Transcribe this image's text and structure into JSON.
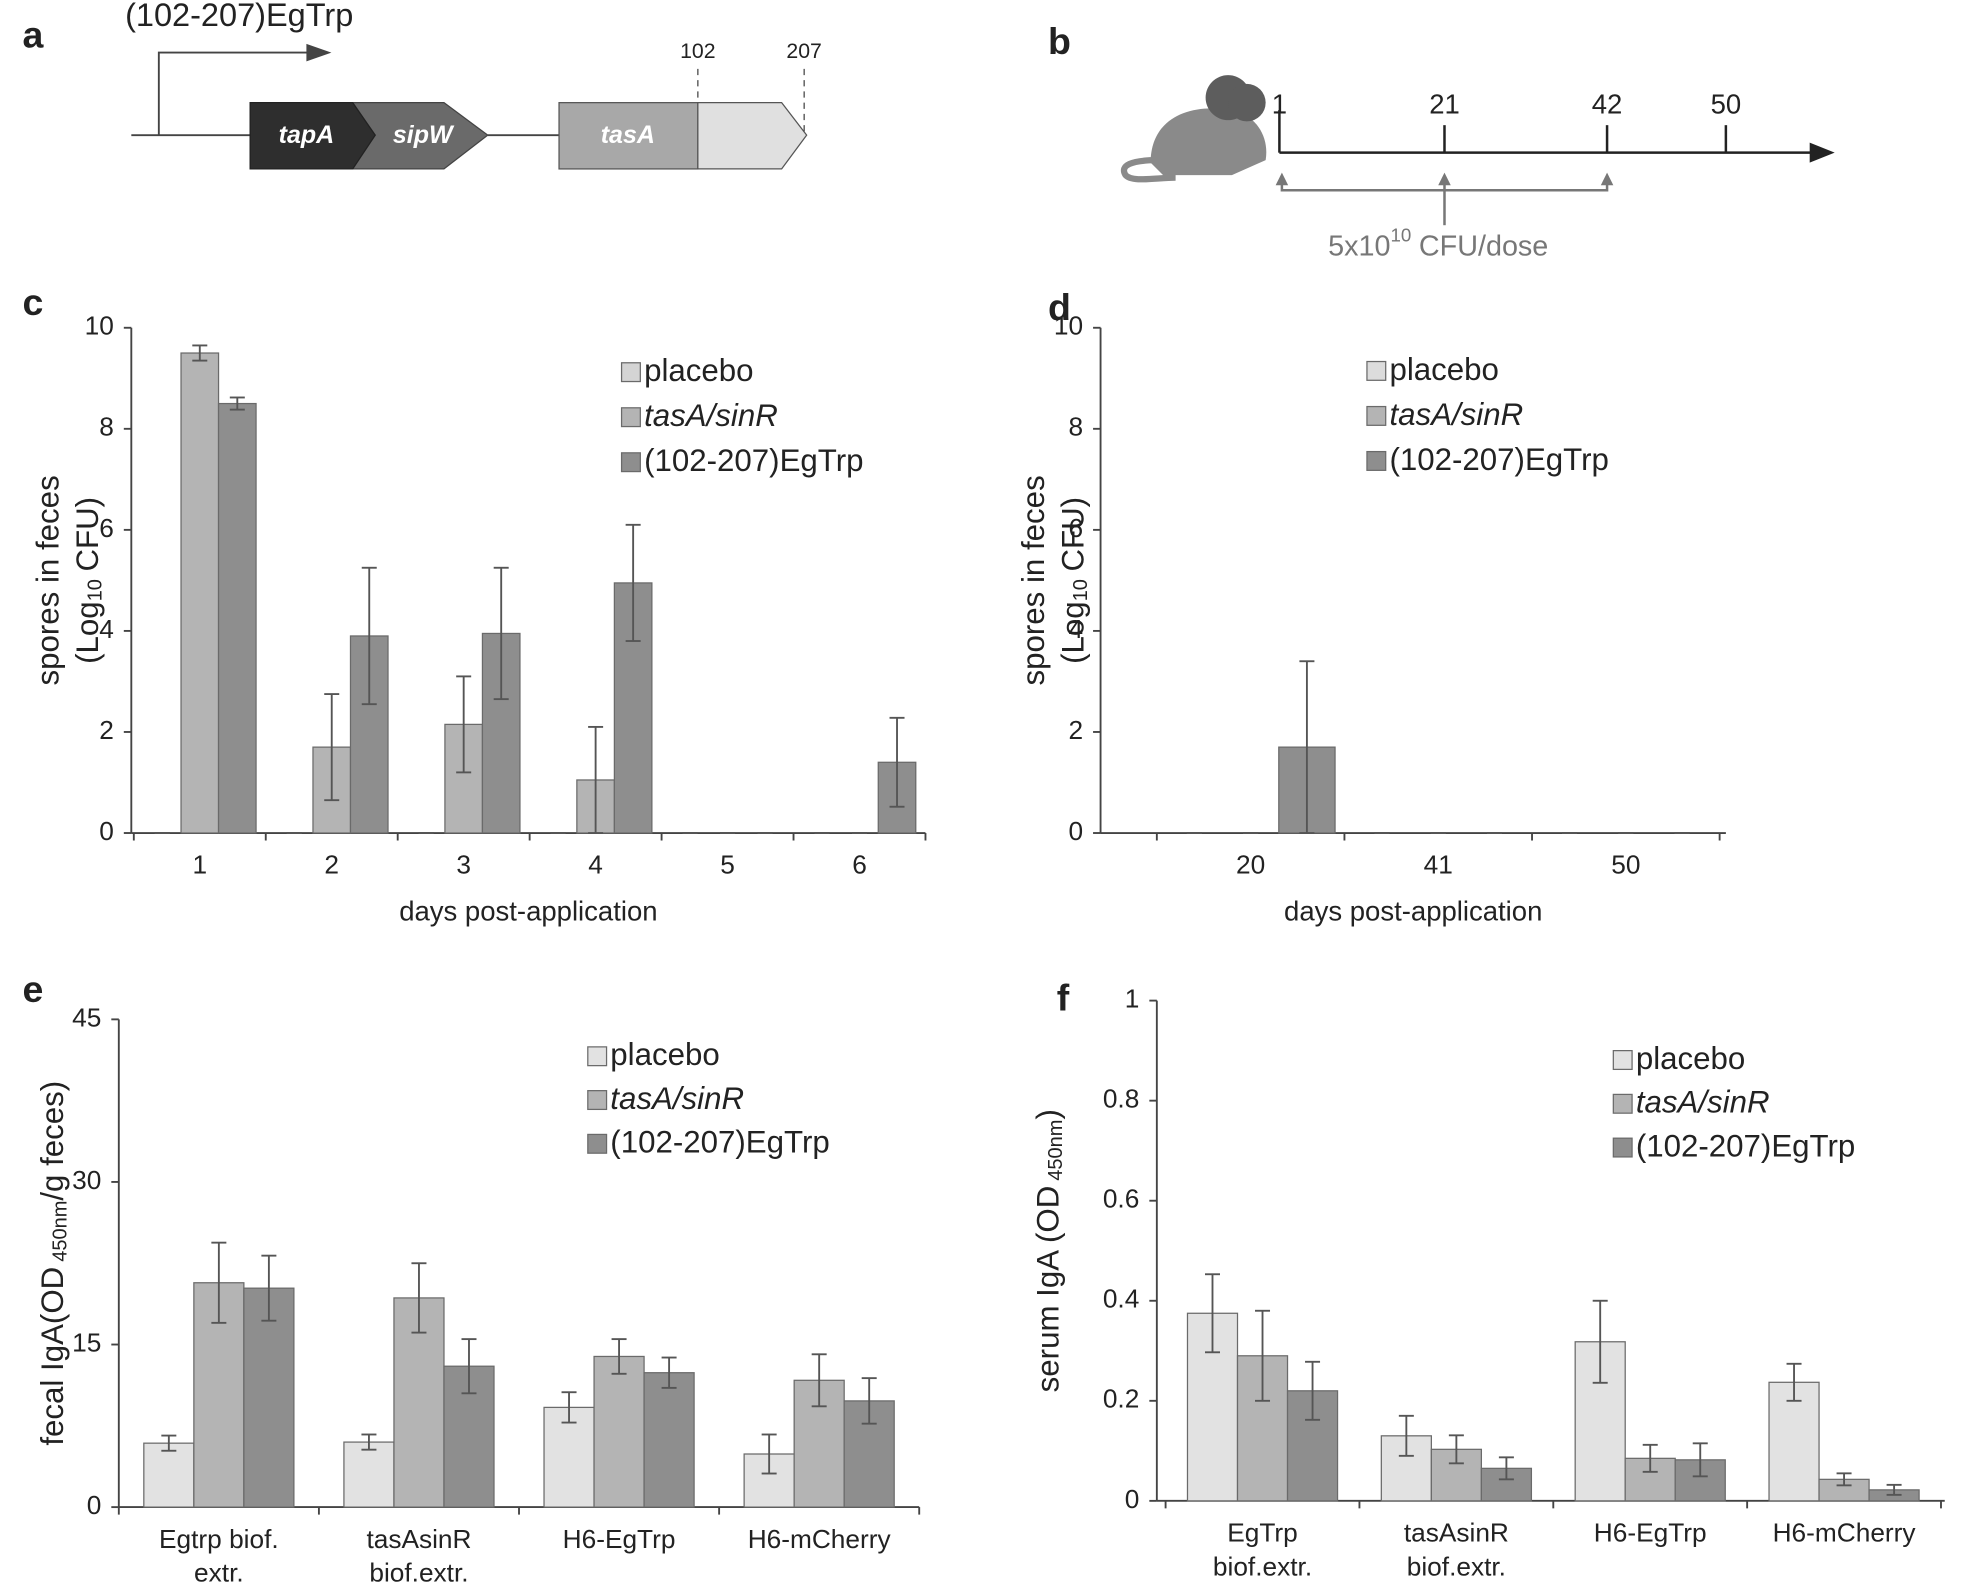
{
  "panel_labels": [
    "a",
    "b",
    "c",
    "d",
    "e",
    "f"
  ],
  "diagram_a": {
    "promoter_label": "(102-207)EgTrp",
    "genes": [
      "tapA",
      "sipW",
      "tasA"
    ],
    "markers": [
      "102",
      "207"
    ]
  },
  "diagram_b": {
    "timepoints": [
      1,
      21,
      42,
      50
    ],
    "dose_base": "5x10",
    "dose_exp": "10",
    "dose_unit": "CFU/dose"
  },
  "chart_data": [
    {
      "type": "bar",
      "xlabel": "days post-application",
      "ylabel": {
        "line1": "spores in feces",
        "line2": "(Log",
        "sub": "10",
        "line2_end": "CFU)"
      },
      "categories": [
        "1",
        "2",
        "3",
        "4",
        "5",
        "6"
      ],
      "ylim": [
        0,
        10
      ],
      "yticks": [
        0,
        2,
        4,
        6,
        8,
        10
      ],
      "series": [
        {
          "name": "placebo",
          "color": "#d4d4d4",
          "values": [
            0,
            0,
            0,
            0,
            0,
            0
          ],
          "errors": [
            0,
            0,
            0,
            0,
            0,
            0
          ]
        },
        {
          "name": "tasA/sinR",
          "color": "#b4b4b4",
          "values": [
            9.5,
            1.7,
            2.15,
            1.05,
            0,
            0
          ],
          "errors": [
            0.15,
            1.05,
            0.95,
            1.05,
            0,
            0
          ]
        },
        {
          "name": "(102-207)EgTrp",
          "color": "#8e8e8e",
          "values": [
            8.5,
            3.9,
            3.95,
            4.95,
            0,
            1.4
          ],
          "errors": [
            0.12,
            1.35,
            1.3,
            1.15,
            0,
            0.88
          ]
        }
      ]
    },
    {
      "type": "bar",
      "xlabel": "days post-application",
      "ylabel": {
        "line1": "spores in feces",
        "line2": "(Log",
        "sub": "10",
        "line2_end": "CFU)"
      },
      "categories": [
        "20",
        "41",
        "50"
      ],
      "ylim": [
        0,
        10
      ],
      "yticks": [
        0,
        2,
        4,
        6,
        8,
        10
      ],
      "series": [
        {
          "name": "placebo",
          "color": "#dcdcdc",
          "values": [
            0,
            0,
            0
          ],
          "errors": [
            0,
            0,
            0
          ]
        },
        {
          "name": "tasA/sinR",
          "color": "#b4b4b4",
          "values": [
            0,
            0,
            0
          ],
          "errors": [
            0,
            0,
            0
          ]
        },
        {
          "name": "(102-207)EgTrp",
          "color": "#8e8e8e",
          "values": [
            1.7,
            0,
            0
          ],
          "errors": [
            1.7,
            0,
            0
          ]
        }
      ]
    },
    {
      "type": "bar",
      "ylabel": {
        "line1": "fecal IgA(OD",
        "sub": "450nm",
        "line1_end": "/g feces)"
      },
      "categories": [
        "Egtrp biof.\nextr.",
        "tasAsinR\nbiof.extr.",
        "H6-EgTrp",
        "H6-mCherry"
      ],
      "ylim": [
        0,
        45
      ],
      "yticks": [
        0,
        15,
        30,
        45
      ],
      "series": [
        {
          "name": "placebo",
          "color": "#e2e2e2",
          "values": [
            5.9,
            6.0,
            9.2,
            4.9
          ],
          "errors": [
            0.7,
            0.7,
            1.4,
            1.8
          ]
        },
        {
          "name": "tasA/sinR",
          "color": "#b4b4b4",
          "values": [
            20.7,
            19.3,
            13.9,
            11.7
          ],
          "errors": [
            3.7,
            3.2,
            1.6,
            2.4
          ]
        },
        {
          "name": "(102-207)EgTrp",
          "color": "#8e8e8e",
          "values": [
            20.2,
            13.0,
            12.4,
            9.8
          ],
          "errors": [
            3.0,
            2.5,
            1.4,
            2.1
          ]
        }
      ]
    },
    {
      "type": "bar",
      "ylabel": {
        "line1": "serum IgA (OD",
        "sub": "450nm",
        "line1_end": ")"
      },
      "categories": [
        "EgTrp\nbiof.extr.",
        "tasAsinR\nbiof.extr.",
        "H6-EgTrp",
        "H6-mCherry"
      ],
      "ylim": [
        0,
        1
      ],
      "yticks": [
        0,
        0.2,
        0.4,
        0.6,
        0.8,
        1
      ],
      "series": [
        {
          "name": "placebo",
          "color": "#e2e2e2",
          "values": [
            0.375,
            0.13,
            0.318,
            0.237
          ],
          "errors": [
            0.078,
            0.04,
            0.082,
            0.037
          ]
        },
        {
          "name": "tasA/sinR",
          "color": "#b4b4b4",
          "values": [
            0.29,
            0.103,
            0.085,
            0.043
          ],
          "errors": [
            0.09,
            0.028,
            0.027,
            0.012
          ]
        },
        {
          "name": "(102-207)EgTrp",
          "color": "#8e8e8e",
          "values": [
            0.22,
            0.065,
            0.082,
            0.022
          ],
          "errors": [
            0.058,
            0.022,
            0.033,
            0.01
          ]
        }
      ]
    }
  ]
}
